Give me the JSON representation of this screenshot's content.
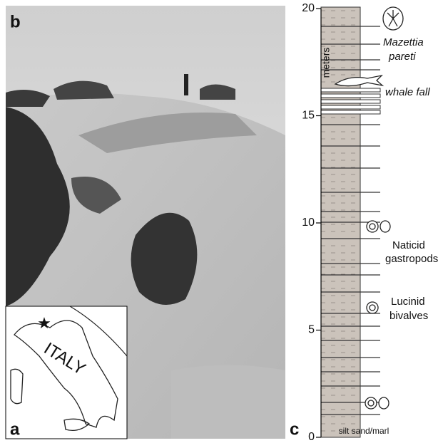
{
  "figure": {
    "panels": {
      "b": "b",
      "a": "a",
      "c": "c"
    },
    "map": {
      "label": "ITALY"
    },
    "column": {
      "axis_label": "meters",
      "ylim": [
        0,
        20
      ],
      "ticks": [
        0,
        5,
        10,
        15,
        20
      ],
      "annotations": [
        {
          "lines": [
            "Mazettia",
            "pareti"
          ]
        },
        {
          "lines": [
            "whale fall"
          ]
        },
        {
          "lines": [
            "Naticid",
            "gastropods"
          ]
        },
        {
          "lines": [
            "Lucinid",
            "bivalves"
          ]
        }
      ],
      "legend": "silt sand/marl"
    }
  }
}
